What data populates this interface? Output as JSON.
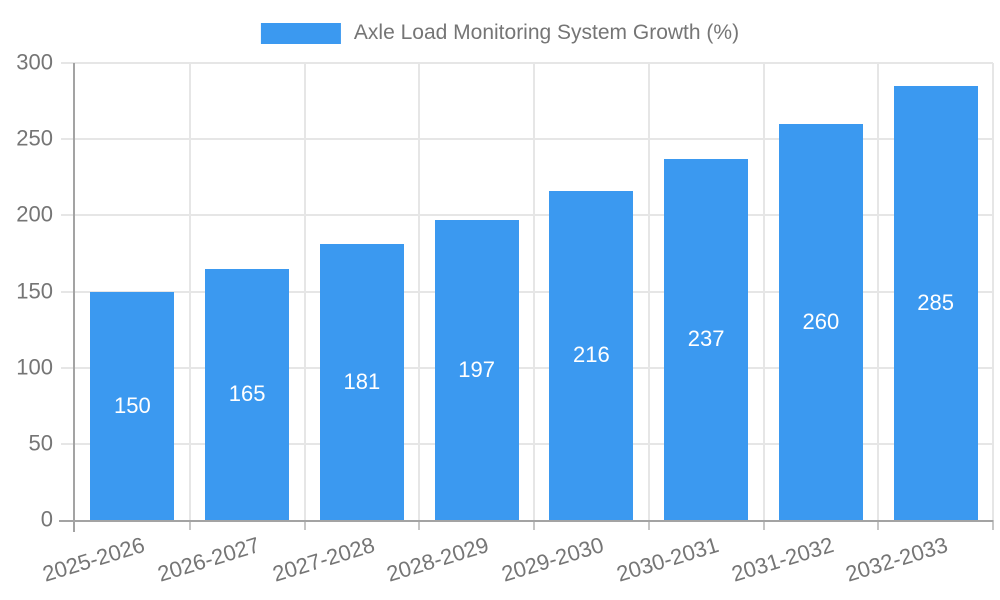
{
  "chart_data": {
    "type": "bar",
    "title": "Axle Load Monitoring System Growth (%)",
    "legend": {
      "position": "top",
      "entries": [
        "Axle Load Monitoring System Growth (%)"
      ]
    },
    "categories": [
      "2025-2026",
      "2026-2027",
      "2027-2028",
      "2028-2029",
      "2029-2030",
      "2030-2031",
      "2031-2032",
      "2032-2033"
    ],
    "series": [
      {
        "name": "Axle Load Monitoring System Growth (%)",
        "values": [
          150,
          165,
          181,
          197,
          216,
          237,
          260,
          285
        ]
      }
    ],
    "value_labels_shown": true,
    "xlabel": "",
    "ylabel": "",
    "ylim": [
      0,
      300
    ],
    "yticks": [
      0,
      50,
      100,
      150,
      200,
      250,
      300
    ],
    "grid": true,
    "colors": {
      "bar": "#3B99F0",
      "value_label": "#ffffff",
      "axis_label": "#757575",
      "legend_text": "#757575",
      "axis_line": "#a3a3a3",
      "gridline": "#e6e6e6",
      "tick": "#c6c6c6",
      "background": "#ffffff"
    }
  }
}
